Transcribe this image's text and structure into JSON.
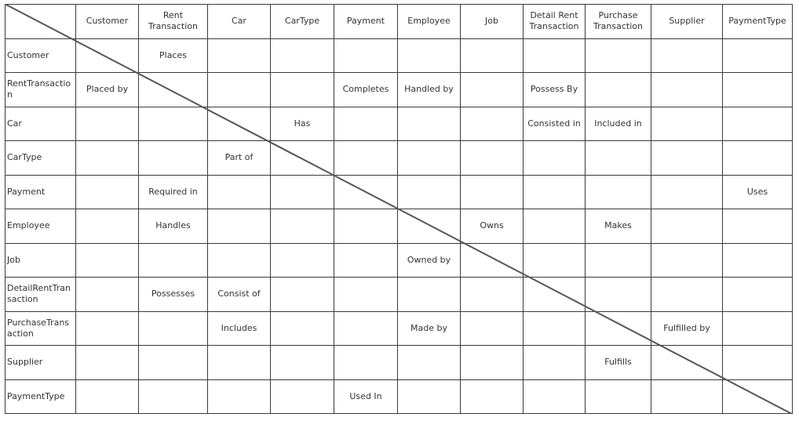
{
  "columns": [
    "Customer",
    "Rent Transaction",
    "Car",
    "CarType",
    "Payment",
    "Employee",
    "Job",
    "Detail Rent Transaction",
    "Purchase Transaction",
    "Supplier",
    "PaymentType"
  ],
  "rows": [
    {
      "label": "Customer",
      "cells": [
        "",
        "Places",
        "",
        "",
        "",
        "",
        "",
        "",
        "",
        "",
        ""
      ]
    },
    {
      "label": "RentTransaction",
      "cells": [
        "Placed by",
        "",
        "",
        "",
        "Completes",
        "Handled by",
        "",
        "Possess By",
        "",
        "",
        ""
      ]
    },
    {
      "label": "Car",
      "cells": [
        "",
        "",
        "",
        "Has",
        "",
        "",
        "",
        "Consisted in",
        "Included in",
        "",
        ""
      ]
    },
    {
      "label": "CarType",
      "cells": [
        "",
        "",
        "Part of",
        "",
        "",
        "",
        "",
        "",
        "",
        "",
        ""
      ]
    },
    {
      "label": "Payment",
      "cells": [
        "",
        "Required in",
        "",
        "",
        "",
        "",
        "",
        "",
        "",
        "",
        "Uses"
      ]
    },
    {
      "label": "Employee",
      "cells": [
        "",
        "Handles",
        "",
        "",
        "",
        "",
        "Owns",
        "",
        "Makes",
        "",
        ""
      ]
    },
    {
      "label": "Job",
      "cells": [
        "",
        "",
        "",
        "",
        "",
        "Owned by",
        "",
        "",
        "",
        "",
        ""
      ]
    },
    {
      "label": "DetailRentTransaction",
      "cells": [
        "",
        "Possesses",
        "Consist of",
        "",
        "",
        "",
        "",
        "",
        "",
        "",
        ""
      ]
    },
    {
      "label": "PurchaseTransaction",
      "cells": [
        "",
        "",
        "Includes",
        "",
        "",
        "Made by",
        "",
        "",
        "",
        "Fulfilled by",
        ""
      ]
    },
    {
      "label": "Supplier",
      "cells": [
        "",
        "",
        "",
        "",
        "",
        "",
        "",
        "",
        "Fulfills",
        "",
        ""
      ]
    },
    {
      "label": "PaymentType",
      "cells": [
        "",
        "",
        "",
        "",
        "Used In",
        "",
        "",
        "",
        "",
        "",
        ""
      ]
    }
  ]
}
